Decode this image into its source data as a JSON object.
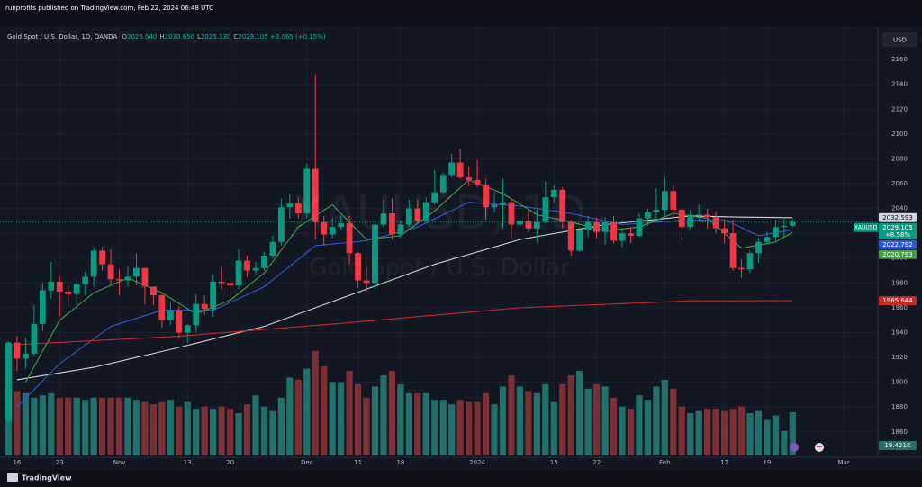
{
  "header": {
    "publisher": "runprofits published on TradingView.com, Feb 22, 2024 06:48 UTC"
  },
  "chart_data": {
    "type": "candlestick",
    "title": "Gold Spot / U.S. Dollar, 1D, OANDA",
    "ohlc_legend": [
      {
        "key": "O",
        "value": "2026.040"
      },
      {
        "key": "H",
        "value": "2030.650"
      },
      {
        "key": "L",
        "value": "2025.130"
      },
      {
        "key": "C",
        "value": "2029.105"
      }
    ],
    "change": "+3.065 (+0.15%)",
    "watermark": [
      "XAUUSD, 1D",
      "Gold Spot / U.S. Dollar"
    ],
    "symbol": "XAUUSD",
    "currency": "USD",
    "close_note": "+8.58%",
    "colors": {
      "up": "#089981",
      "down": "#f23645"
    },
    "open": [
      1869,
      1932,
      1919,
      1923,
      1947,
      1974,
      1981,
      1973,
      1971,
      1979,
      1985,
      2006,
      1995,
      1983,
      1982,
      1985,
      1992,
      1977,
      1970,
      1950,
      1958,
      1940,
      1946,
      1963,
      1959,
      1981,
      1980,
      1978,
      1998,
      1990,
      1992,
      2002,
      2013,
      2041,
      2044,
      2036,
      2072,
      2029,
      2019,
      2025,
      2028,
      2004,
      1982,
      1980,
      2027,
      2036,
      2019,
      2027,
      2040,
      2030,
      2045,
      2053,
      2067,
      2077,
      2065,
      2063,
      2059,
      2041,
      2043,
      2045,
      2027,
      2030,
      2024,
      2029,
      2049,
      2055,
      2029,
      2006,
      2023,
      2029,
      2021,
      2029,
      2014,
      2020,
      2018,
      2032,
      2037,
      2039,
      2054,
      2039,
      2025,
      2035,
      2035,
      2033,
      2024,
      2020,
      1992,
      1991,
      2004,
      2013,
      2017,
      2025,
      2026.04
    ],
    "high": [
      1933,
      1937,
      1936,
      1962,
      1980,
      1997,
      1985,
      1978,
      1982,
      1989,
      2009,
      2009,
      2007,
      1991,
      1993,
      2004,
      1992,
      1977,
      1971,
      1965,
      1961,
      1947,
      1971,
      1970,
      1987,
      1993,
      1985,
      2007,
      2002,
      1997,
      2005,
      2018,
      2048,
      2052,
      2049,
      2076,
      2148,
      2034,
      2032,
      2035,
      2034,
      2005,
      1993,
      2028,
      2047,
      2048,
      2030,
      2047,
      2047,
      2049,
      2071,
      2069,
      2084,
      2088,
      2074,
      2079,
      2064,
      2053,
      2064,
      2047,
      2041,
      2039,
      2039,
      2062,
      2059,
      2057,
      2031,
      2025,
      2034,
      2033,
      2033,
      2034,
      2024,
      2025,
      2036,
      2040,
      2056,
      2065,
      2058,
      2040,
      2039,
      2043,
      2040,
      2038,
      2031,
      2031,
      1999,
      2006,
      2016,
      2021,
      2031,
      2033,
      2030.65
    ],
    "low": [
      1868,
      1909,
      1911,
      1921,
      1941,
      1967,
      1953,
      1961,
      1962,
      1970,
      1977,
      1990,
      1979,
      1970,
      1977,
      1978,
      1963,
      1962,
      1944,
      1946,
      1935,
      1932,
      1940,
      1954,
      1953,
      1975,
      1966,
      1975,
      1985,
      1987,
      1990,
      2000,
      2010,
      2032,
      2032,
      2032,
      2015,
      2010,
      2016,
      2022,
      1995,
      1976,
      1973,
      1975,
      2025,
      2015,
      2016,
      2025,
      2028,
      2028,
      2043,
      2052,
      2065,
      2064,
      2058,
      2057,
      2031,
      2037,
      2024,
      2016,
      2025,
      2021,
      2013,
      2028,
      2044,
      2024,
      2002,
      2005,
      2017,
      2016,
      2011,
      2012,
      2009,
      2012,
      2017,
      2026,
      2029,
      2033,
      2032,
      2015,
      2022,
      2030,
      2024,
      2020,
      2012,
      1990,
      1984,
      1988,
      1996,
      2012,
      2014,
      2017,
      2025.13
    ],
    "close": [
      1932,
      1919,
      1923,
      1947,
      1974,
      1981,
      1973,
      1971,
      1979,
      1985,
      2006,
      1995,
      1983,
      1982,
      1985,
      1992,
      1977,
      1970,
      1950,
      1958,
      1940,
      1946,
      1963,
      1959,
      1981,
      1980,
      1978,
      1998,
      1990,
      1992,
      2002,
      2013,
      2041,
      2044,
      2036,
      2072,
      2029,
      2019,
      2025,
      2028,
      2004,
      1982,
      1980,
      2027,
      2036,
      2019,
      2027,
      2040,
      2030,
      2045,
      2053,
      2067,
      2077,
      2065,
      2063,
      2059,
      2041,
      2043,
      2045,
      2027,
      2030,
      2024,
      2029,
      2049,
      2055,
      2029,
      2006,
      2023,
      2029,
      2021,
      2029,
      2014,
      2020,
      2018,
      2032,
      2037,
      2039,
      2054,
      2039,
      2025,
      2035,
      2035,
      2033,
      2024,
      2020,
      1992,
      1991,
      2004,
      2013,
      2017,
      2025,
      2026.04,
      2029.105
    ],
    "ylim": [
      1841,
      2184
    ],
    "yticks": [
      1860,
      1880,
      1900,
      1920,
      1940,
      1960,
      1980,
      2000,
      2020,
      2040,
      2060,
      2080,
      2100,
      2120,
      2140,
      2160
    ],
    "xlim": [
      -1,
      102
    ],
    "xticks": [
      {
        "value": 1,
        "label": "16"
      },
      {
        "value": 6,
        "label": "23"
      },
      {
        "value": 13,
        "label": "Nov"
      },
      {
        "value": 21,
        "label": "13"
      },
      {
        "value": 26,
        "label": "20"
      },
      {
        "value": 35,
        "label": "Dec"
      },
      {
        "value": 41,
        "label": "11"
      },
      {
        "value": 46,
        "label": "18"
      },
      {
        "value": 55,
        "label": "2024"
      },
      {
        "value": 64,
        "label": "15"
      },
      {
        "value": 69,
        "label": "22"
      },
      {
        "value": 77,
        "label": "Feb"
      },
      {
        "value": 84,
        "label": "12"
      },
      {
        "value": 89,
        "label": "19"
      },
      {
        "value": 98,
        "label": "Mar"
      }
    ],
    "grid": true,
    "series": [
      {
        "color": "#d1d4dc",
        "x": [
          1,
          10,
          20,
          30,
          40,
          50,
          60,
          70,
          80,
          86,
          92
        ],
        "values": [
          1902,
          1912,
          1928,
          1945,
          1970,
          1995,
          2015,
          2027,
          2034,
          2033,
          2032.593
        ]
      },
      {
        "color": "#2f56d6",
        "x": [
          1,
          6,
          12,
          18,
          24,
          30,
          36,
          42,
          48,
          54,
          60,
          66,
          72,
          78,
          84,
          88,
          92
        ],
        "values": [
          1880,
          1915,
          1945,
          1958,
          1958,
          1977,
          2010,
          2014,
          2025,
          2045,
          2042,
          2036,
          2027,
          2030,
          2031,
          2018,
          2022.792
        ]
      },
      {
        "color": "#43a047",
        "x": [
          2,
          6,
          10,
          14,
          18,
          22,
          26,
          30,
          34,
          38,
          42,
          46,
          50,
          54,
          58,
          62,
          66,
          70,
          74,
          78,
          82,
          86,
          90,
          92
        ],
        "values": [
          1900,
          1950,
          1972,
          1984,
          1972,
          1955,
          1966,
          1988,
          2025,
          2043,
          2015,
          2018,
          2038,
          2063,
          2052,
          2035,
          2029,
          2022,
          2025,
          2036,
          2032,
          2008,
          2013,
          2020.793
        ]
      },
      {
        "color": "#c62828",
        "x": [
          0,
          20,
          40,
          60,
          80,
          92
        ],
        "values": [
          1930,
          1937,
          1948,
          1960,
          1965.5,
          1965.644
        ]
      }
    ],
    "volume": {
      "values": [
        30,
        29,
        28,
        26,
        27,
        28,
        26,
        26,
        26,
        25,
        26,
        26,
        26,
        26,
        26,
        25,
        24,
        23,
        24,
        25,
        22,
        24,
        21,
        22,
        21,
        22,
        21,
        19,
        23,
        27,
        22,
        20,
        26,
        35,
        34,
        39,
        47,
        40,
        33,
        33,
        38,
        32,
        26,
        31,
        36,
        38,
        32,
        28,
        28,
        28,
        25,
        25,
        23,
        25,
        24,
        24,
        28,
        23,
        31,
        36,
        31,
        29,
        28,
        32,
        24,
        32,
        36,
        38,
        30,
        32,
        31,
        26,
        22,
        21,
        27,
        25,
        31,
        34,
        30,
        22,
        19,
        20,
        21,
        21,
        20,
        21,
        22,
        19,
        20,
        16,
        18,
        11,
        19.421
      ],
      "value_label": "19.421K",
      "ylim": [
        0,
        70.8
      ],
      "colors": {
        "up": "#22706b",
        "down": "#7b3035"
      }
    }
  },
  "footer": {
    "brand": "TradingView"
  }
}
